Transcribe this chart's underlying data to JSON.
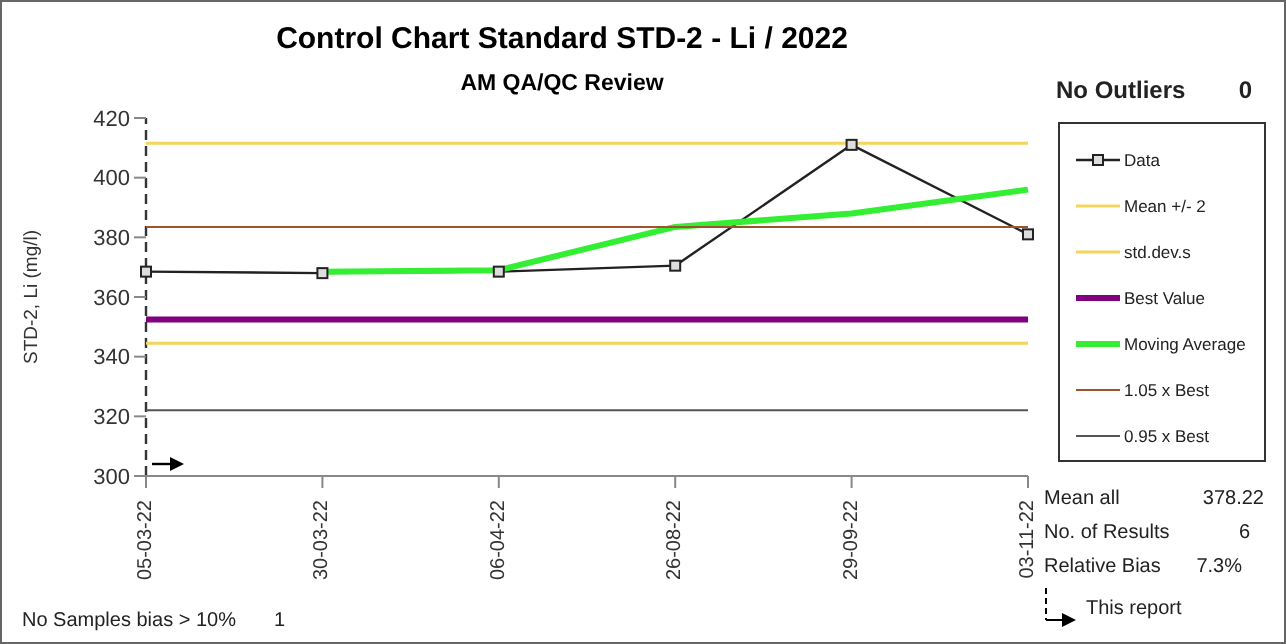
{
  "chart_data": {
    "type": "line",
    "title": "Control Chart Standard STD-2 - Li / 2022",
    "subtitle": "AM QA/QC Review",
    "ylabel": "STD-2, Li (mg/l)",
    "categories": [
      "05-03-22",
      "30-03-22",
      "06-04-22",
      "26-08-22",
      "29-09-22",
      "03-11-22"
    ],
    "series": [
      {
        "name": "Data",
        "color": "#222222",
        "values": [
          368.5,
          368,
          368.5,
          370.5,
          411,
          381
        ],
        "marker": "square"
      },
      {
        "name": "Mean +/- 2",
        "color": "#f2d55a",
        "values": [
          411.5,
          411.5,
          411.5,
          411.5,
          411.5,
          411.5
        ]
      },
      {
        "name": "std.dev.s",
        "color": "#f2d55a",
        "values": [
          344.5,
          344.5,
          344.5,
          344.5,
          344.5,
          344.5
        ]
      },
      {
        "name": "Best Value",
        "color": "#800080",
        "values": [
          352.5,
          352.5,
          352.5,
          352.5,
          352.5,
          352.5
        ]
      },
      {
        "name": "Moving Average",
        "color": "#33ee33",
        "values": [
          null,
          368.5,
          369,
          383.5,
          388,
          396
        ]
      },
      {
        "name": "1.05 x Best",
        "color": "#a0522d",
        "values": [
          383.5,
          383.5,
          383.5,
          383.5,
          383.5,
          383.5
        ]
      },
      {
        "name": "0.95 x Best",
        "color": "#555555",
        "values": [
          322,
          322,
          322,
          322,
          322,
          322
        ]
      }
    ],
    "ylim": [
      300,
      420
    ],
    "yticks": [
      300,
      320,
      340,
      360,
      380,
      400,
      420
    ],
    "grid": false,
    "legend": "right",
    "marker": "none",
    "line_style": "solid",
    "ref_lines": [
      {
        "axis": "x",
        "value": "05-03-22",
        "color": "#333333",
        "line_style": "dashed"
      }
    ],
    "annotations": [
      "No Outliers",
      "0",
      "Mean all",
      "378.22",
      "No. of Results",
      "6",
      "Relative Bias",
      "7.3%",
      "This report",
      "No Samples bias > 10%",
      "1"
    ]
  }
}
